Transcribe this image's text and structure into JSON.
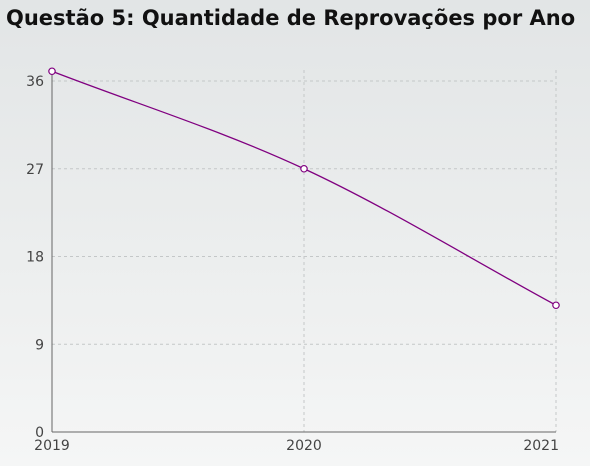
{
  "chart_data": {
    "type": "line",
    "title": "Questão 5: Quantidade de Reprovações por Ano",
    "x": [
      "2019",
      "2020",
      "2021"
    ],
    "series": [
      {
        "values": [
          37,
          27,
          13
        ]
      }
    ],
    "xlabel": "",
    "ylabel": "",
    "ylim": [
      0,
      36
    ],
    "yticks": [
      "0",
      "9",
      "18",
      "27",
      "36"
    ],
    "grid": true,
    "line_color": "#800080",
    "marker": "hollow-circle"
  }
}
